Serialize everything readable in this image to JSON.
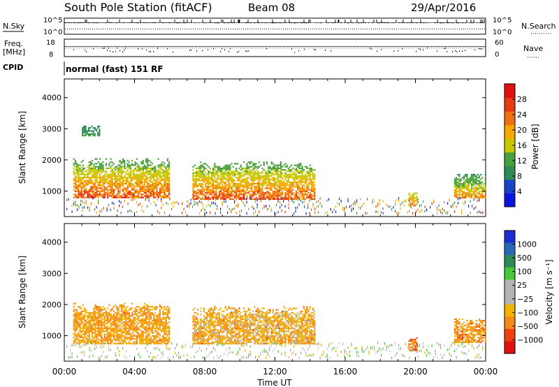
{
  "header": {
    "station_title": "South Pole Station (fitACF)",
    "beam": "Beam 08",
    "date": "29/Apr/2016"
  },
  "aux_panels": {
    "nsky_label": "N.Sky",
    "nsky_top": "10^5",
    "nsky_bottom": "10^0",
    "nsearch_label": "N.Search",
    "nsearch_top": "10^5",
    "nsearch_bottom": "10^0",
    "freq_label_line1": "Freq.",
    "freq_label_line2": "[MHz]",
    "freq_top": "18",
    "freq_bottom": "8",
    "nave_label": "Nave",
    "nave_top": "60",
    "nave_bottom": "0",
    "cpid_label": "CPID",
    "cpid_value": "normal (fast) 151 RF"
  },
  "colors": {
    "power_scale": [
      "#0a14e0",
      "#1a44c8",
      "#2f8a5a",
      "#4aa03c",
      "#c8c800",
      "#f5a800",
      "#f07010",
      "#e83a12",
      "#e01010"
    ],
    "velocity_scale": [
      "#e01010",
      "#f04010",
      "#f58a18",
      "#f0b400",
      "#b4b4b4",
      "#b4b4b4",
      "#46c83a",
      "#2f8a5a",
      "#2a6ab4",
      "#1e2ad2"
    ]
  },
  "chart_data": [
    {
      "type": "heatmap",
      "title": "Power",
      "ylabel": "Slant Range [km]",
      "yticks": [
        "1000",
        "2000",
        "3000",
        "4000"
      ],
      "ylim": [
        180,
        4600
      ],
      "xlim": [
        0,
        24
      ],
      "colorbar": {
        "label": "Power [dB]",
        "ticks": [
          "4",
          "8",
          "12",
          "16",
          "20",
          "24",
          "28"
        ],
        "range": [
          0,
          32
        ]
      },
      "series": [
        {
          "t_start": 0.5,
          "t_end": 6.0,
          "r_start": 800,
          "r_end": 2100,
          "values": [
            12,
            28
          ]
        },
        {
          "t_start": 1.0,
          "t_end": 2.0,
          "r_start": 2800,
          "r_end": 3150,
          "values": [
            8,
            12
          ]
        },
        {
          "t_start": 7.3,
          "t_end": 14.3,
          "r_start": 750,
          "r_end": 2000,
          "values": [
            12,
            28
          ]
        },
        {
          "t_start": 19.6,
          "t_end": 20.1,
          "r_start": 550,
          "r_end": 1000,
          "values": [
            16,
            22
          ]
        },
        {
          "t_start": 22.2,
          "t_end": 24.0,
          "r_start": 800,
          "r_end": 1600,
          "values": [
            10,
            24
          ]
        }
      ]
    },
    {
      "type": "heatmap",
      "title": "Velocity",
      "ylabel": "Slant Range [km]",
      "yticks": [
        "1000",
        "2000",
        "3000",
        "4000"
      ],
      "ylim": [
        180,
        4600
      ],
      "xlim": [
        0,
        24
      ],
      "colorbar": {
        "label": "Velocity [m s⁻¹]",
        "ticks": [
          "1000",
          "500",
          "100",
          "25",
          "−25",
          "−100",
          "−500",
          "−1000"
        ],
        "range": [
          -1200,
          1200
        ]
      },
      "xticks": [
        "00:00",
        "04:00",
        "08:00",
        "12:00",
        "16:00",
        "20:00",
        "00:00"
      ],
      "xlabel": "Time UT",
      "series": [
        {
          "t_start": 0.5,
          "t_end": 6.0,
          "r_start": 750,
          "r_end": 2100,
          "values": [
            -150,
            -60
          ]
        },
        {
          "t_start": 7.3,
          "t_end": 14.3,
          "r_start": 750,
          "r_end": 2000,
          "values": [
            -200,
            150
          ]
        },
        {
          "t_start": 19.6,
          "t_end": 20.1,
          "r_start": 550,
          "r_end": 1000,
          "values": [
            -500,
            -100
          ]
        },
        {
          "t_start": 22.2,
          "t_end": 24.0,
          "r_start": 800,
          "r_end": 1600,
          "values": [
            -300,
            -60
          ]
        }
      ]
    }
  ]
}
